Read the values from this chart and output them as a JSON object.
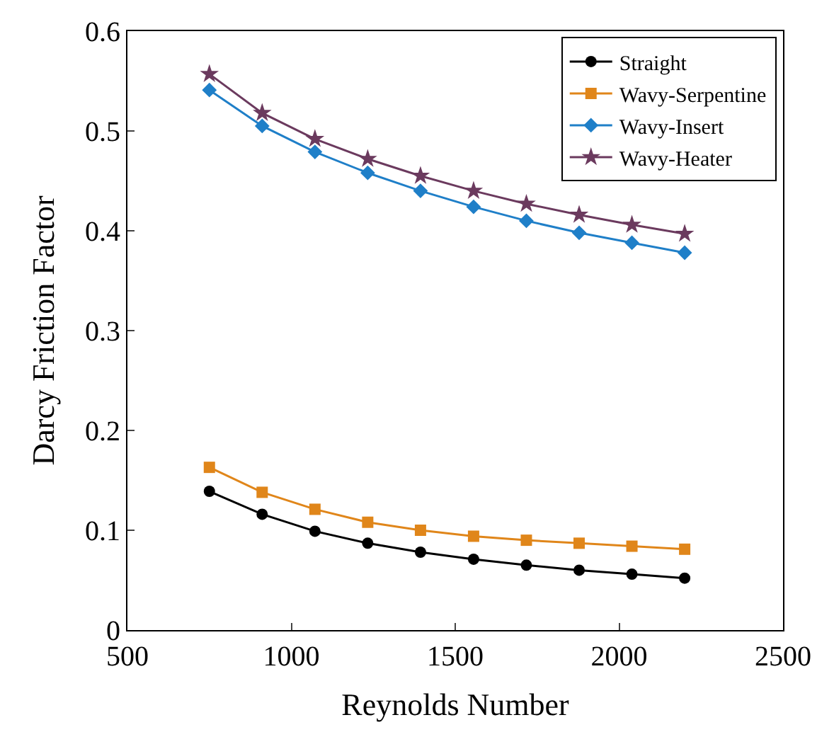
{
  "chart_data": {
    "type": "line",
    "xlabel": "Reynolds Number",
    "ylabel": "Darcy Friction Factor",
    "x": [
      750,
      911,
      1072,
      1233,
      1394,
      1556,
      1717,
      1878,
      2039,
      2200
    ],
    "xlim": [
      500,
      2500
    ],
    "xticks": [
      500,
      1000,
      1500,
      2000,
      2500
    ],
    "ylim": [
      0,
      0.6
    ],
    "yticks": [
      0,
      0.1,
      0.2,
      0.3,
      0.4,
      0.5,
      0.6
    ],
    "legend": "top right",
    "line_style": "solid",
    "series": [
      {
        "name": "Straight",
        "color": "#000000",
        "marker": "circle",
        "values": [
          0.139,
          0.116,
          0.099,
          0.087,
          0.078,
          0.071,
          0.065,
          0.06,
          0.056,
          0.052
        ]
      },
      {
        "name": "Wavy-Serpentine",
        "color": "#e0861a",
        "marker": "square",
        "values": [
          0.163,
          0.138,
          0.121,
          0.108,
          0.1,
          0.094,
          0.09,
          0.087,
          0.084,
          0.081
        ]
      },
      {
        "name": "Wavy-Insert",
        "color": "#1f7fc8",
        "marker": "diamond",
        "values": [
          0.541,
          0.505,
          0.479,
          0.458,
          0.44,
          0.424,
          0.41,
          0.398,
          0.388,
          0.378
        ]
      },
      {
        "name": "Wavy-Heater",
        "color": "#6b3a5e",
        "marker": "star",
        "values": [
          0.557,
          0.518,
          0.492,
          0.472,
          0.455,
          0.44,
          0.427,
          0.416,
          0.406,
          0.397
        ]
      }
    ]
  }
}
